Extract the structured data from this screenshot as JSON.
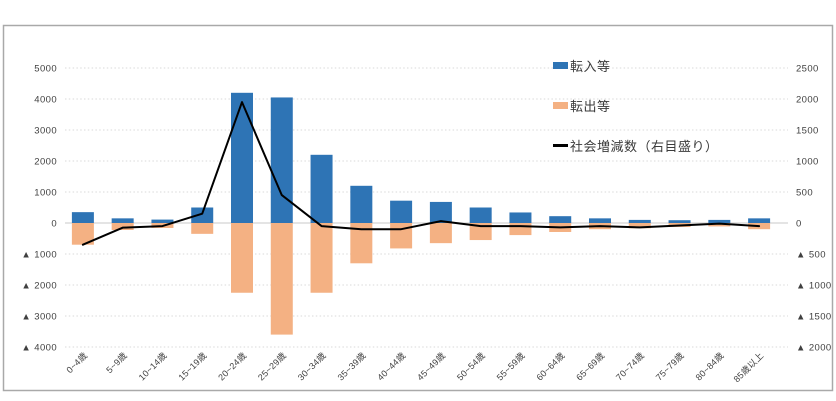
{
  "chart_data": {
    "type": "combo-bar-line",
    "title": "",
    "categories": [
      "0~4歳",
      "5~9歳",
      "10~14歳",
      "15~19歳",
      "20~24歳",
      "25~29歳",
      "30~34歳",
      "35~39歳",
      "40~44歳",
      "45~49歳",
      "50~54歳",
      "55~59歳",
      "60~64歳",
      "65~69歳",
      "70~74歳",
      "75~79歳",
      "80~84歳",
      "85歳以上"
    ],
    "series": [
      {
        "name": "転入等",
        "type": "bar",
        "axis": "left",
        "color": "#2e74b5",
        "values": [
          350,
          150,
          110,
          500,
          4200,
          4050,
          2200,
          1200,
          720,
          680,
          500,
          340,
          220,
          150,
          100,
          90,
          100,
          150
        ]
      },
      {
        "name": "転出等",
        "type": "bar",
        "axis": "left",
        "color": "#f4b183",
        "values": [
          -700,
          -225,
          -160,
          -350,
          -2250,
          -3600,
          -2250,
          -1300,
          -820,
          -650,
          -550,
          -390,
          -290,
          -200,
          -170,
          -130,
          -110,
          -200
        ]
      },
      {
        "name": "社会増減数（右目盛り）",
        "type": "line",
        "axis": "right",
        "color": "#000000",
        "values": [
          -350,
          -75,
          -50,
          150,
          1950,
          450,
          -50,
          -100,
          -100,
          30,
          -50,
          -50,
          -70,
          -50,
          -70,
          -40,
          -10,
          -50
        ]
      }
    ],
    "left_axis": {
      "min": -4000,
      "max": 5000,
      "step": 1000,
      "tick_values": [
        5000,
        4000,
        3000,
        2000,
        1000,
        0,
        -1000,
        -2000,
        -3000,
        -4000
      ],
      "tick_labels": [
        "5000",
        "4000",
        "3000",
        "2000",
        "1000",
        "0",
        "▲ 1000",
        "▲ 2000",
        "▲ 3000",
        "▲ 4000"
      ]
    },
    "right_axis": {
      "min": -2000,
      "max": 2500,
      "step": 500,
      "tick_values": [
        2500,
        2000,
        1500,
        1000,
        500,
        0,
        -500,
        -1000,
        -1500,
        -2000
      ],
      "tick_labels": [
        "2500",
        "2000",
        "1500",
        "1000",
        "500",
        "0",
        "▲ 500",
        "▲ 1000",
        "▲ 1500",
        "▲ 2000"
      ]
    },
    "grid": true,
    "gridline_style": "dotted",
    "legend_position": "inside-top-right",
    "negative_number_format": "▲ prefix"
  },
  "legend": {
    "items": [
      {
        "label": "転入等",
        "marker": "square",
        "color": "#2e74b5"
      },
      {
        "label": "転出等",
        "marker": "square",
        "color": "#f4b183"
      },
      {
        "label": "社会増減数（右目盛り）",
        "marker": "line",
        "color": "#000000"
      }
    ]
  },
  "frame": {
    "border_color": "#a9a9a9",
    "background": "#ffffff"
  }
}
